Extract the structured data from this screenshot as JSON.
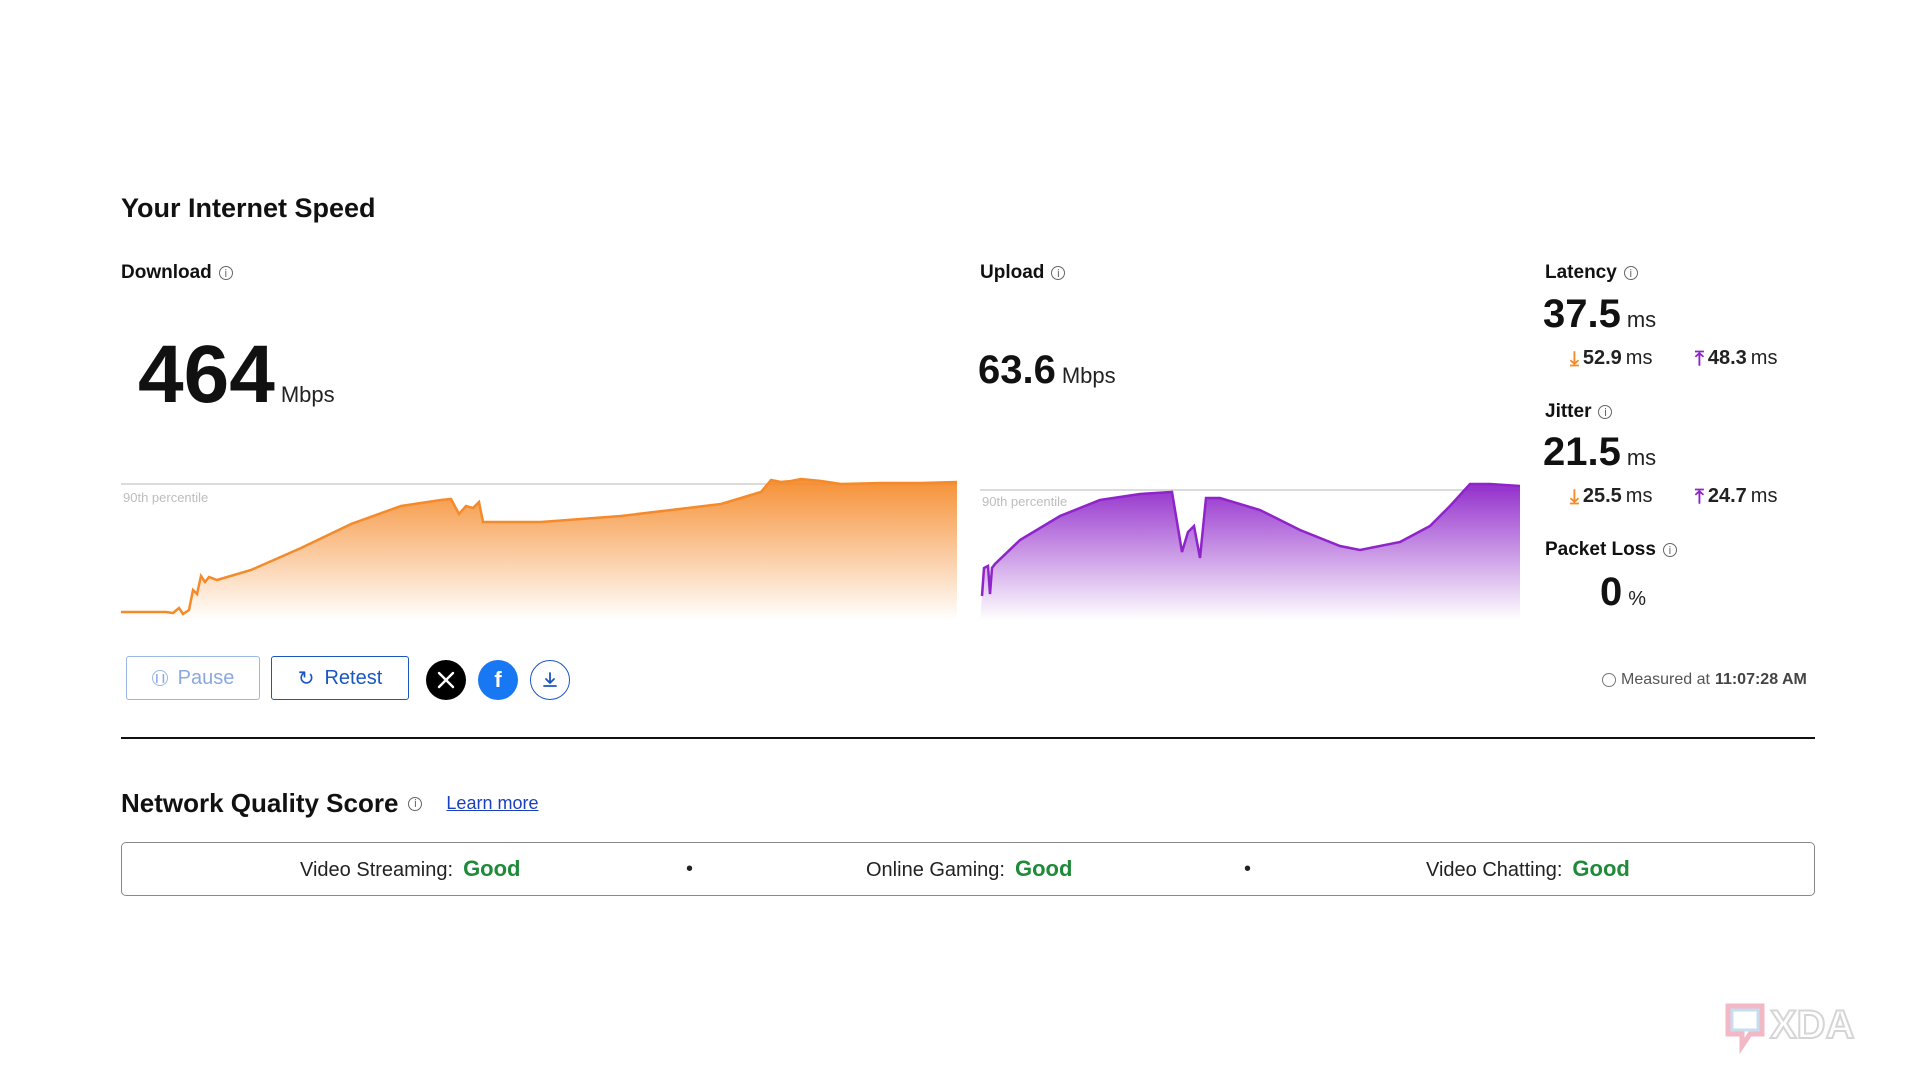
{
  "title": "Your Internet Speed",
  "download": {
    "label": "Download",
    "value": "464",
    "unit": "Mbps",
    "percentile_label": "90th percentile"
  },
  "upload": {
    "label": "Upload",
    "value": "63.6",
    "unit": "Mbps",
    "percentile_label": "90th percentile"
  },
  "latency": {
    "label": "Latency",
    "value": "37.5",
    "unit": "ms",
    "down": "52.9",
    "up": "48.3",
    "sub_unit": "ms"
  },
  "jitter": {
    "label": "Jitter",
    "value": "21.5",
    "unit": "ms",
    "down": "25.5",
    "up": "24.7",
    "sub_unit": "ms"
  },
  "packet_loss": {
    "label": "Packet Loss",
    "value": "0",
    "unit": "%"
  },
  "buttons": {
    "pause": "Pause",
    "retest": "Retest"
  },
  "measured": {
    "prefix": "Measured at",
    "time": "11:07:28 AM"
  },
  "network_quality": {
    "title": "Network Quality Score",
    "learn_more": "Learn more",
    "items": [
      {
        "label": "Video Streaming:",
        "rating": "Good"
      },
      {
        "label": "Online Gaming:",
        "rating": "Good"
      },
      {
        "label": "Video Chatting:",
        "rating": "Good"
      }
    ]
  },
  "colors": {
    "download": "#f58a2a",
    "upload": "#8e24c9",
    "good": "#1f8a3a",
    "button": "#1a56c4"
  },
  "icons": {
    "x": "x-logo-icon",
    "facebook": "facebook-icon",
    "download": "download-icon"
  }
}
